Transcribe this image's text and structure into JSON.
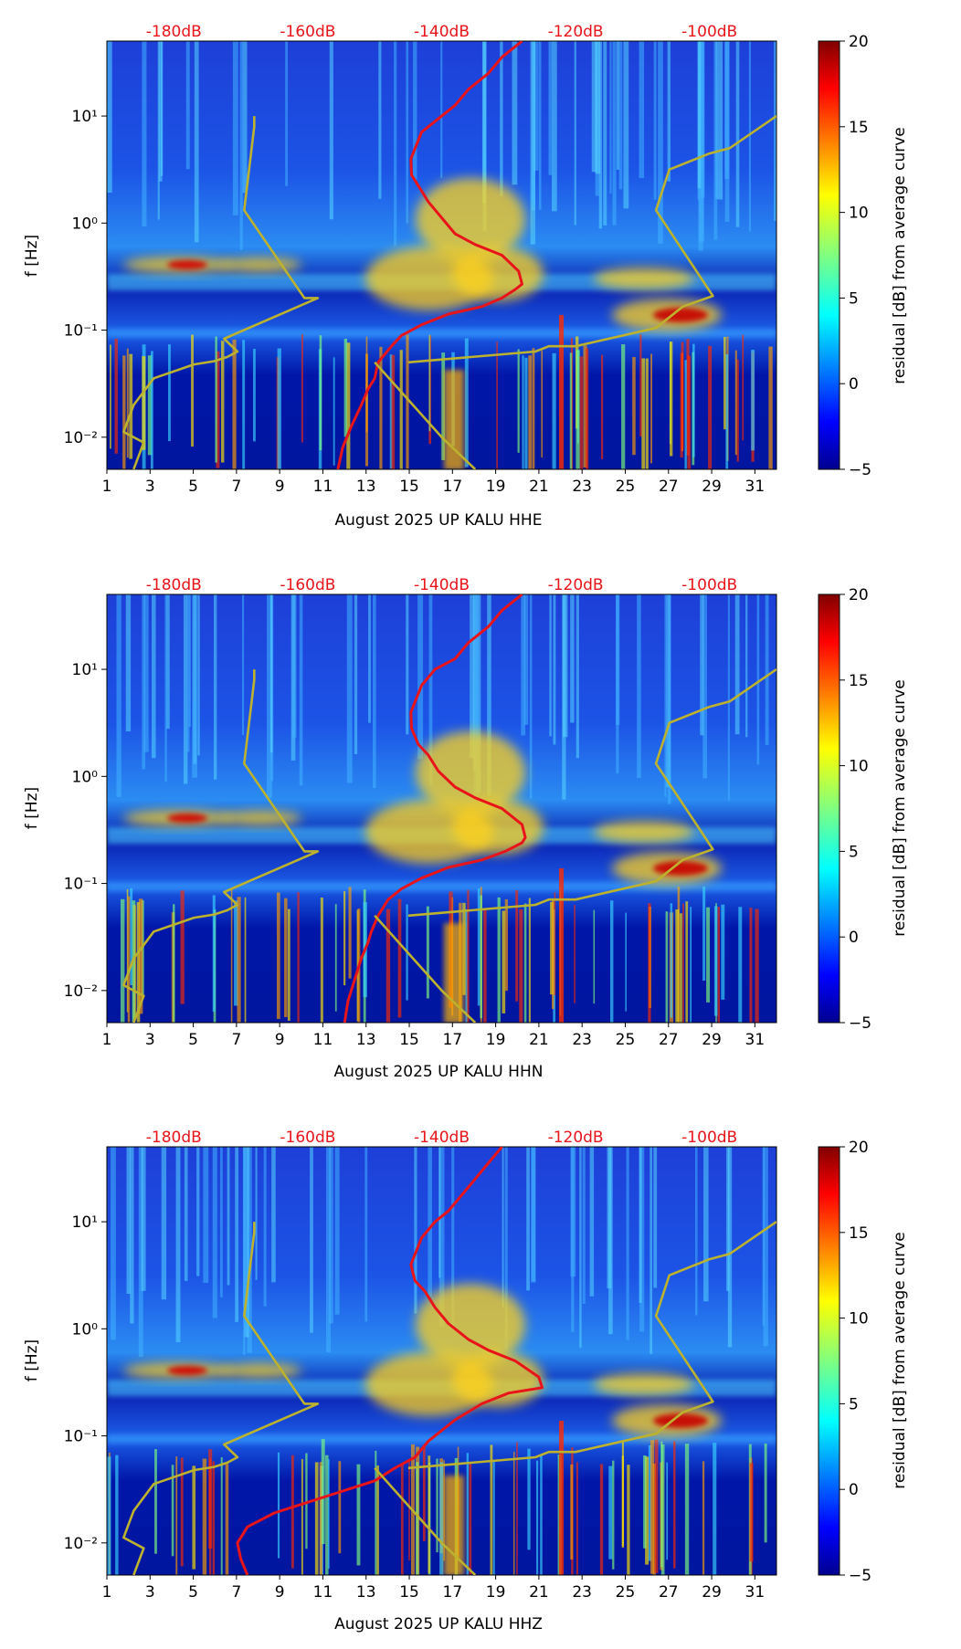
{
  "chart_data": [
    {
      "type": "heatmap",
      "xlabel": "August 2025 UP KALU  HHE",
      "ylabel": "f [Hz]",
      "x_tick_labels": [
        "1",
        "3",
        "5",
        "7",
        "9",
        "11",
        "13",
        "15",
        "17",
        "19",
        "21",
        "23",
        "25",
        "27",
        "29",
        "31"
      ],
      "y_tick_labels": [
        "10⁻²",
        "10⁻¹",
        "10⁰",
        "10¹"
      ],
      "top_axis_labels": [
        "-180dB",
        "-160dB",
        "-140dB",
        "-120dB",
        "-100dB"
      ],
      "colorbar": {
        "label": "residual [dB] from average curve",
        "ticks": [
          "−5",
          "0",
          "5",
          "10",
          "15",
          "20"
        ],
        "range": [
          -5,
          20
        ]
      },
      "xlim": [
        1,
        32
      ],
      "ylim_log10": [
        -2.3,
        1.7
      ],
      "top_axis_db_range": [
        -190,
        -90
      ],
      "series": [
        {
          "name": "average PSD curve (red)",
          "color": "#e8141a",
          "x_db": [
            -155.5,
            -154.8,
            -153.5,
            -152,
            -151,
            -150,
            -149.5,
            -147.5,
            -146,
            -143,
            -139,
            -134,
            -131,
            -129,
            -128,
            -128.5,
            -131,
            -135,
            -138,
            -140,
            -142,
            -143,
            -144.5,
            -144.6,
            -143,
            -140,
            -138,
            -136,
            -133,
            -131,
            -128
          ],
          "y_log10": [
            -2.3,
            -2.1,
            -1.9,
            -1.7,
            -1.55,
            -1.45,
            -1.3,
            -1.15,
            -1.05,
            -0.95,
            -0.85,
            -0.78,
            -0.7,
            -0.62,
            -0.57,
            -0.45,
            -0.3,
            -0.2,
            -0.1,
            0.05,
            0.2,
            0.3,
            0.45,
            0.6,
            0.85,
            1.0,
            1.1,
            1.25,
            1.4,
            1.55,
            1.7
          ]
        },
        {
          "name": "low noise model (olive)",
          "color": "#bdb22e",
          "x_db": [
            -186,
            -184.5,
            -187.5,
            -186,
            -183,
            -177,
            -174,
            -172,
            -170.5,
            -172.5,
            -158.5,
            -160.5,
            -169.5,
            -168,
            -168
          ],
          "y_log10": [
            -2.3,
            -2.05,
            -1.95,
            -1.7,
            -1.45,
            -1.32,
            -1.29,
            -1.25,
            -1.2,
            -1.08,
            -0.7,
            -0.7,
            0.12,
            0.9,
            1.0
          ]
        },
        {
          "name": "low noise model tail (olive)",
          "color": "#bdb22e",
          "x_db": [
            -135,
            -140,
            -150
          ],
          "y_log10": [
            -2.3,
            -2.0,
            -1.3
          ]
        },
        {
          "name": "high noise model (olive)",
          "color": "#bdb22e",
          "x_db": [
            -145,
            -126,
            -124,
            -120,
            -108,
            -104,
            -99.5,
            -108,
            -108,
            -106,
            -100,
            -97,
            -90
          ],
          "y_log10": [
            -1.3,
            -1.2,
            -1.15,
            -1.15,
            -0.98,
            -0.78,
            -0.68,
            0.12,
            0.12,
            0.5,
            0.65,
            0.7,
            1.0
          ]
        }
      ]
    },
    {
      "type": "heatmap",
      "xlabel": "August 2025 UP KALU  HHN",
      "ylabel": "f [Hz]",
      "x_tick_labels": [
        "1",
        "3",
        "5",
        "7",
        "9",
        "11",
        "13",
        "15",
        "17",
        "19",
        "21",
        "23",
        "25",
        "27",
        "29",
        "31"
      ],
      "y_tick_labels": [
        "10⁻²",
        "10⁻¹",
        "10⁰",
        "10¹"
      ],
      "top_axis_labels": [
        "-180dB",
        "-160dB",
        "-140dB",
        "-120dB",
        "-100dB"
      ],
      "colorbar": {
        "label": "residual [dB] from average curve",
        "ticks": [
          "−5",
          "0",
          "5",
          "10",
          "15",
          "20"
        ],
        "range": [
          -5,
          20
        ]
      },
      "xlim": [
        1,
        32
      ],
      "ylim_log10": [
        -2.3,
        1.7
      ],
      "top_axis_db_range": [
        -190,
        -90
      ],
      "series": [
        {
          "name": "average PSD curve (red)",
          "color": "#e8141a",
          "x_db": [
            -154.5,
            -154,
            -153,
            -152,
            -151,
            -150.5,
            -149.5,
            -148,
            -146,
            -143,
            -139,
            -134,
            -130.5,
            -128,
            -127.5,
            -128,
            -131,
            -135,
            -138,
            -140.5,
            -142,
            -143.5,
            -144.5,
            -144.6,
            -143,
            -141,
            -138,
            -136,
            -133,
            -131,
            -128
          ],
          "y_log10": [
            -2.3,
            -2.1,
            -1.9,
            -1.7,
            -1.55,
            -1.45,
            -1.3,
            -1.15,
            -1.05,
            -0.95,
            -0.85,
            -0.78,
            -0.7,
            -0.62,
            -0.57,
            -0.45,
            -0.3,
            -0.2,
            -0.1,
            0.05,
            0.2,
            0.3,
            0.45,
            0.6,
            0.85,
            1.0,
            1.1,
            1.25,
            1.4,
            1.55,
            1.7
          ]
        },
        {
          "name": "low noise model (olive)",
          "color": "#bdb22e",
          "x_db": [
            -186,
            -184.5,
            -187.5,
            -186,
            -183,
            -177,
            -174,
            -172,
            -170.5,
            -172.5,
            -158.5,
            -160.5,
            -169.5,
            -168,
            -168
          ],
          "y_log10": [
            -2.3,
            -2.05,
            -1.95,
            -1.7,
            -1.45,
            -1.32,
            -1.29,
            -1.25,
            -1.2,
            -1.08,
            -0.7,
            -0.7,
            0.12,
            0.9,
            1.0
          ]
        },
        {
          "name": "low noise model tail (olive)",
          "color": "#bdb22e",
          "x_db": [
            -135,
            -140,
            -150
          ],
          "y_log10": [
            -2.3,
            -2.0,
            -1.3
          ]
        },
        {
          "name": "high noise model (olive)",
          "color": "#bdb22e",
          "x_db": [
            -145,
            -126,
            -124,
            -120,
            -108,
            -104,
            -99.5,
            -108,
            -108,
            -106,
            -100,
            -97,
            -90
          ],
          "y_log10": [
            -1.3,
            -1.2,
            -1.15,
            -1.15,
            -0.98,
            -0.78,
            -0.68,
            0.12,
            0.12,
            0.5,
            0.65,
            0.7,
            1.0
          ]
        }
      ]
    },
    {
      "type": "heatmap",
      "xlabel": "August 2025 UP KALU  HHZ",
      "ylabel": "f [Hz]",
      "x_tick_labels": [
        "1",
        "3",
        "5",
        "7",
        "9",
        "11",
        "13",
        "15",
        "17",
        "19",
        "21",
        "23",
        "25",
        "27",
        "29",
        "31"
      ],
      "y_tick_labels": [
        "10⁻²",
        "10⁻¹",
        "10⁰",
        "10¹"
      ],
      "top_axis_labels": [
        "-180dB",
        "-160dB",
        "-140dB",
        "-120dB",
        "-100dB"
      ],
      "colorbar": {
        "label": "residual [dB] from average curve",
        "ticks": [
          "−5",
          "0",
          "5",
          "10",
          "15",
          "20"
        ],
        "range": [
          -5,
          20
        ]
      },
      "xlim": [
        1,
        32
      ],
      "ylim_log10": [
        -2.3,
        1.7
      ],
      "top_axis_db_range": [
        -190,
        -90
      ],
      "series": [
        {
          "name": "average PSD curve (red)",
          "color": "#e8141a",
          "x_db": [
            -169,
            -170,
            -170.5,
            -169,
            -165,
            -160,
            -155,
            -150,
            -147,
            -144,
            -142,
            -138,
            -134,
            -130,
            -125,
            -125.5,
            -129,
            -133,
            -136,
            -139,
            -141,
            -142.5,
            -144,
            -144.6,
            -143,
            -141,
            -139,
            -137,
            -135,
            -133,
            -131
          ],
          "y_log10": [
            -2.3,
            -2.15,
            -2.0,
            -1.85,
            -1.72,
            -1.62,
            -1.52,
            -1.42,
            -1.3,
            -1.2,
            -1.05,
            -0.85,
            -0.7,
            -0.6,
            -0.55,
            -0.45,
            -0.3,
            -0.2,
            -0.1,
            0.05,
            0.2,
            0.35,
            0.45,
            0.6,
            0.85,
            1.0,
            1.1,
            1.25,
            1.4,
            1.55,
            1.7
          ]
        },
        {
          "name": "low noise model (olive)",
          "color": "#bdb22e",
          "x_db": [
            -186,
            -184.5,
            -187.5,
            -186,
            -183,
            -177,
            -174,
            -172,
            -170.5,
            -172.5,
            -158.5,
            -160.5,
            -169.5,
            -168,
            -168
          ],
          "y_log10": [
            -2.3,
            -2.05,
            -1.95,
            -1.7,
            -1.45,
            -1.32,
            -1.29,
            -1.25,
            -1.2,
            -1.08,
            -0.7,
            -0.7,
            0.12,
            0.9,
            1.0
          ]
        },
        {
          "name": "low noise model tail (olive)",
          "color": "#bdb22e",
          "x_db": [
            -135,
            -140,
            -150
          ],
          "y_log10": [
            -2.3,
            -2.0,
            -1.3
          ]
        },
        {
          "name": "high noise model (olive)",
          "color": "#bdb22e",
          "x_db": [
            -145,
            -126,
            -124,
            -120,
            -108,
            -104,
            -99.5,
            -108,
            -108,
            -106,
            -100,
            -97,
            -90
          ],
          "y_log10": [
            -1.3,
            -1.2,
            -1.15,
            -1.15,
            -0.98,
            -0.78,
            -0.68,
            0.12,
            0.12,
            0.5,
            0.65,
            0.7,
            1.0
          ]
        }
      ]
    }
  ]
}
